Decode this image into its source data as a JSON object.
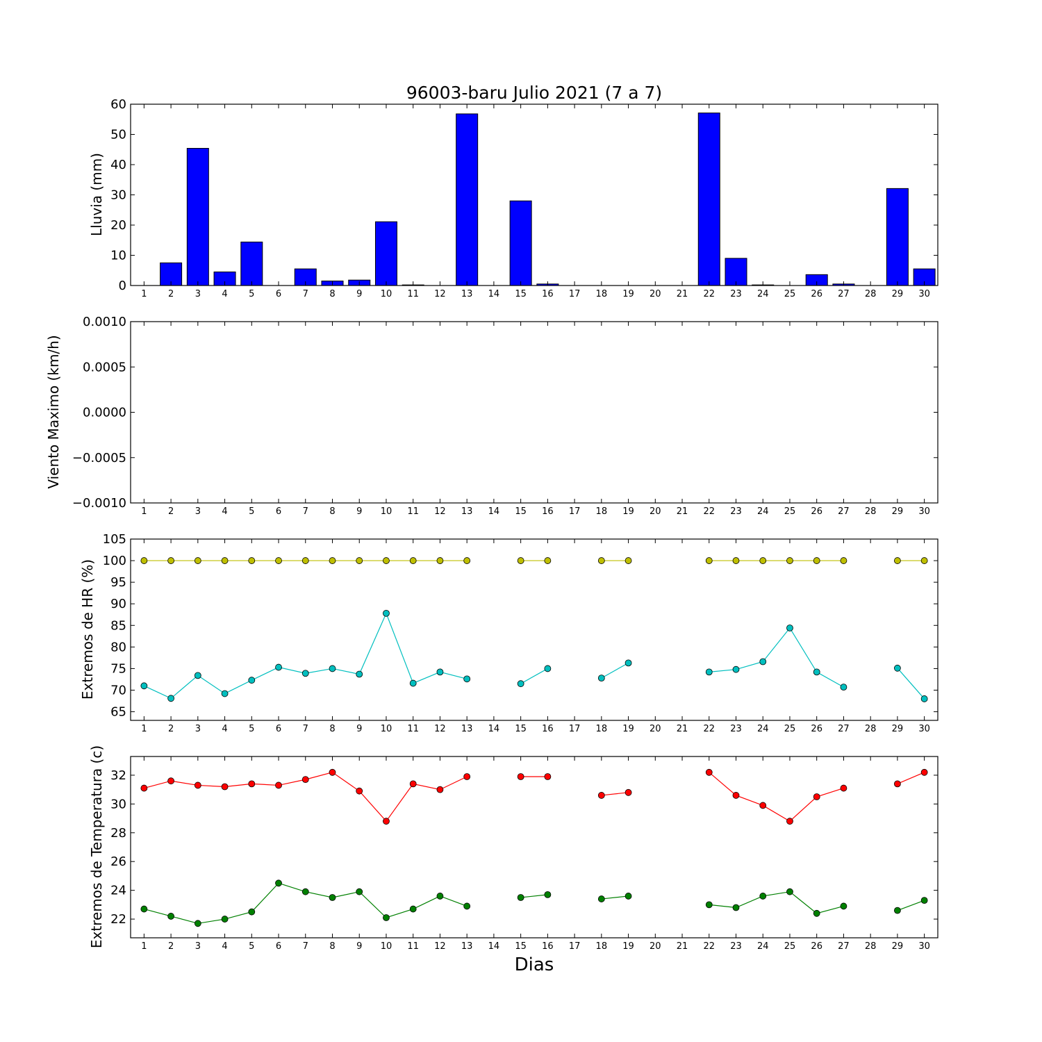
{
  "figure": {
    "title": "96003-baru Julio 2021  (7 a 7)",
    "xlabel": "Dias"
  },
  "chart_data": [
    {
      "type": "bar",
      "ylabel": "Lluvia (mm)",
      "ylim": [
        0,
        60
      ],
      "yticks": [
        "0",
        "10",
        "20",
        "30",
        "40",
        "50",
        "60"
      ],
      "xtick_labels": [
        "1",
        "2",
        "3",
        "4",
        "5",
        "6",
        "7",
        "8",
        "9",
        "10",
        "11",
        "12",
        "13",
        "14",
        "15",
        "16",
        "17",
        "18",
        "19",
        "20",
        "21",
        "22",
        "23",
        "24",
        "25",
        "26",
        "27",
        "28",
        "29",
        "30"
      ],
      "categories": [
        1,
        2,
        3,
        4,
        5,
        6,
        7,
        8,
        9,
        10,
        11,
        12,
        13,
        14,
        15,
        16,
        17,
        18,
        19,
        20,
        21,
        22,
        23,
        24,
        25,
        26,
        27,
        28,
        29,
        30
      ],
      "values": [
        0,
        7.5,
        45.4,
        4.5,
        14.4,
        0,
        5.5,
        1.5,
        1.8,
        21.1,
        0.2,
        0,
        56.8,
        0,
        28.0,
        0.5,
        0,
        0,
        0,
        0,
        0,
        57.1,
        9.0,
        0.2,
        0,
        3.6,
        0.5,
        0,
        32.1,
        5.5
      ],
      "bar_color": "#0000ff",
      "grid": false
    },
    {
      "type": "line",
      "ylabel": "Viento Maximo (km/h)",
      "ylim": [
        -0.001,
        0.001
      ],
      "yticks": [
        "−0.0010",
        "−0.0005",
        "0.0000",
        "0.0005",
        "0.0010"
      ],
      "xtick_labels": [
        "1",
        "2",
        "3",
        "4",
        "5",
        "6",
        "7",
        "8",
        "9",
        "10",
        "11",
        "12",
        "13",
        "14",
        "15",
        "16",
        "17",
        "18",
        "19",
        "20",
        "21",
        "22",
        "23",
        "24",
        "25",
        "26",
        "27",
        "28",
        "29",
        "30"
      ],
      "series": [],
      "grid": false
    },
    {
      "type": "line",
      "ylabel": "Extremos de HR (%)",
      "ylim": [
        63,
        105
      ],
      "yticks": [
        "65",
        "70",
        "75",
        "80",
        "85",
        "90",
        "95",
        "100",
        "105"
      ],
      "xtick_labels": [
        "1",
        "2",
        "3",
        "4",
        "5",
        "6",
        "7",
        "8",
        "9",
        "10",
        "11",
        "12",
        "13",
        "14",
        "15",
        "16",
        "17",
        "18",
        "19",
        "20",
        "21",
        "22",
        "23",
        "24",
        "25",
        "26",
        "27",
        "28",
        "29",
        "30"
      ],
      "x": [
        1,
        2,
        3,
        4,
        5,
        6,
        7,
        8,
        9,
        10,
        11,
        12,
        13,
        14,
        15,
        16,
        17,
        18,
        19,
        20,
        21,
        22,
        23,
        24,
        25,
        26,
        27,
        28,
        29,
        30
      ],
      "series": [
        {
          "color": "#bfbf00",
          "values": [
            100,
            100,
            100,
            100,
            100,
            100,
            100,
            100,
            100,
            100,
            100,
            100,
            100,
            null,
            100,
            100,
            null,
            100,
            100,
            null,
            null,
            100,
            100,
            100,
            100,
            100,
            100,
            null,
            100,
            100
          ]
        },
        {
          "color": "#00bfbf",
          "values": [
            71.0,
            68.1,
            73.4,
            69.2,
            72.3,
            75.3,
            73.9,
            75.0,
            73.7,
            87.8,
            71.6,
            74.2,
            72.6,
            null,
            71.5,
            75.0,
            null,
            72.8,
            76.3,
            null,
            null,
            74.2,
            74.8,
            76.6,
            84.4,
            74.2,
            70.7,
            null,
            75.1,
            68.0
          ]
        }
      ],
      "grid": false
    },
    {
      "type": "line",
      "ylabel": "Extremos de Temperatura (c)",
      "ylim": [
        20.7,
        33.3
      ],
      "yticks": [
        "22",
        "24",
        "26",
        "28",
        "30",
        "32"
      ],
      "xtick_labels": [
        "1",
        "2",
        "3",
        "4",
        "5",
        "6",
        "7",
        "8",
        "9",
        "10",
        "11",
        "12",
        "13",
        "14",
        "15",
        "16",
        "17",
        "18",
        "19",
        "20",
        "21",
        "22",
        "23",
        "24",
        "25",
        "26",
        "27",
        "28",
        "29",
        "30"
      ],
      "x": [
        1,
        2,
        3,
        4,
        5,
        6,
        7,
        8,
        9,
        10,
        11,
        12,
        13,
        14,
        15,
        16,
        17,
        18,
        19,
        20,
        21,
        22,
        23,
        24,
        25,
        26,
        27,
        28,
        29,
        30
      ],
      "series": [
        {
          "color": "#ff0000",
          "values": [
            31.1,
            31.6,
            31.3,
            31.2,
            31.4,
            31.3,
            31.7,
            32.2,
            30.9,
            28.8,
            31.4,
            31.0,
            31.9,
            null,
            31.9,
            31.9,
            null,
            30.6,
            30.8,
            null,
            null,
            32.2,
            30.6,
            29.9,
            28.8,
            30.5,
            31.1,
            null,
            31.4,
            32.2
          ]
        },
        {
          "color": "#008000",
          "values": [
            22.7,
            22.2,
            21.7,
            22.0,
            22.5,
            24.5,
            23.9,
            23.5,
            23.9,
            22.1,
            22.7,
            23.6,
            22.9,
            null,
            23.5,
            23.7,
            null,
            23.4,
            23.6,
            null,
            null,
            23.0,
            22.8,
            23.6,
            23.9,
            22.4,
            22.9,
            null,
            22.6,
            23.3
          ]
        }
      ],
      "grid": false
    }
  ]
}
